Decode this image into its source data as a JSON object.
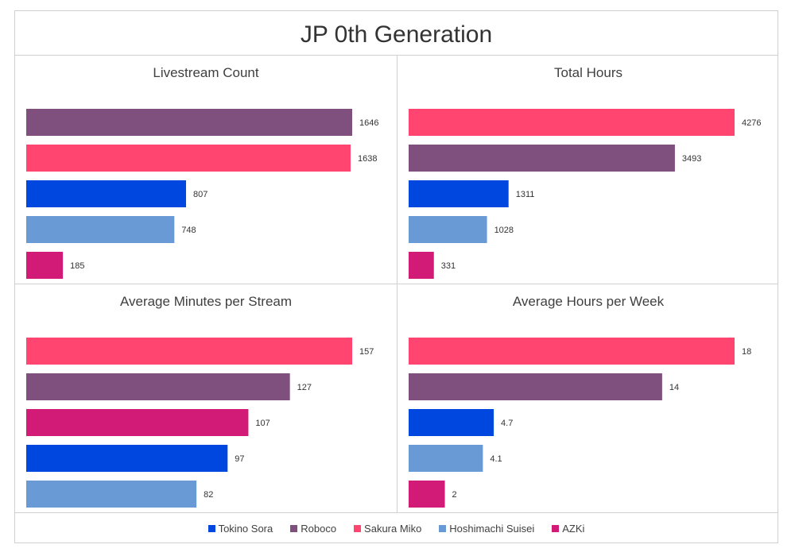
{
  "title": "JP 0th Generation",
  "legend": [
    {
      "name": "Tokino Sora",
      "color": "#0047E0"
    },
    {
      "name": "Roboco",
      "color": "#7F4F7E"
    },
    {
      "name": "Sakura Miko",
      "color": "#FF4570"
    },
    {
      "name": "Hoshimachi Suisei",
      "color": "#6A9AD5"
    },
    {
      "name": "AZKi",
      "color": "#D21B77"
    }
  ],
  "chart_data": [
    {
      "type": "bar",
      "title": "Livestream Count",
      "categories": [
        "Roboco",
        "Sakura Miko",
        "Tokino Sora",
        "Hoshimachi Suisei",
        "AZKi"
      ],
      "values": [
        1646,
        1638,
        807,
        748,
        185
      ],
      "labels": [
        "1646",
        "1638",
        "807",
        "748",
        "185"
      ],
      "xlim": [
        0,
        1646
      ]
    },
    {
      "type": "bar",
      "title": "Total Hours",
      "categories": [
        "Sakura Miko",
        "Roboco",
        "Tokino Sora",
        "Hoshimachi Suisei",
        "AZKi"
      ],
      "values": [
        4276,
        3493,
        1311,
        1028,
        331
      ],
      "labels": [
        "4276",
        "3493",
        "1311",
        "1028",
        "331"
      ],
      "xlim": [
        0,
        4276
      ]
    },
    {
      "type": "bar",
      "title": "Average Minutes per Stream",
      "categories": [
        "Sakura Miko",
        "Roboco",
        "AZKi",
        "Tokino Sora",
        "Hoshimachi Suisei"
      ],
      "values": [
        157,
        127,
        107,
        97,
        82
      ],
      "labels": [
        "157",
        "127",
        "107",
        "97",
        "82"
      ],
      "xlim": [
        0,
        157
      ]
    },
    {
      "type": "bar",
      "title": "Average Hours per Week",
      "categories": [
        "Sakura Miko",
        "Roboco",
        "Tokino Sora",
        "Hoshimachi Suisei",
        "AZKi"
      ],
      "values": [
        18,
        14,
        4.7,
        4.1,
        2
      ],
      "labels": [
        "18",
        "14",
        "4.7",
        "4.1",
        "2"
      ],
      "xlim": [
        0,
        18
      ]
    }
  ]
}
